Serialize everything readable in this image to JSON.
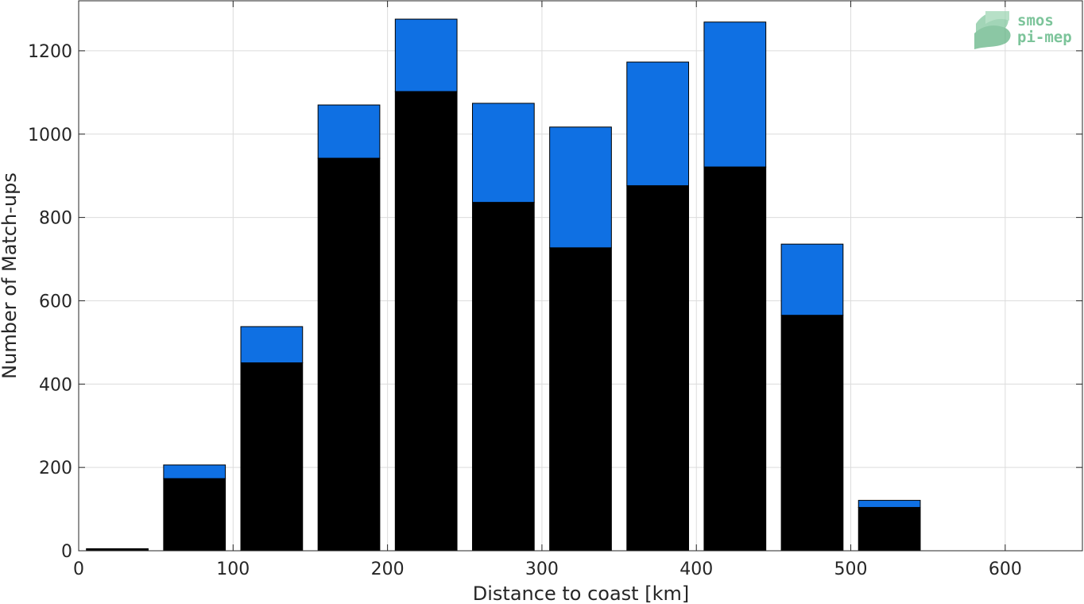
{
  "chart_data": {
    "type": "bar",
    "stacked": true,
    "x_bin_centers": [
      25,
      75,
      125,
      175,
      225,
      275,
      325,
      375,
      425,
      475,
      525
    ],
    "series": [
      {
        "values": [
          5,
          173,
          451,
          942,
          1102,
          836,
          727,
          876,
          921,
          565,
          104
        ]
      },
      {
        "values": [
          0,
          33,
          87,
          128,
          174,
          238,
          290,
          297,
          348,
          171,
          17
        ]
      }
    ],
    "xlabel": "Distance to coast [km]",
    "ylabel": "Number of Match-ups",
    "xlim": [
      0,
      650
    ],
    "ylim": [
      0,
      1320
    ],
    "xticks": [
      0,
      100,
      200,
      300,
      400,
      500,
      600
    ],
    "yticks": [
      0,
      200,
      400,
      600,
      800,
      1000,
      1200
    ],
    "grid": true,
    "colors": {
      "lower": "#000000",
      "upper": "#0f70e3",
      "grid": "#dcdcdc",
      "axis": "#262626"
    }
  },
  "logo": {
    "line1": "smos",
    "line2": "pi-mep",
    "color": "#7cc49a"
  }
}
